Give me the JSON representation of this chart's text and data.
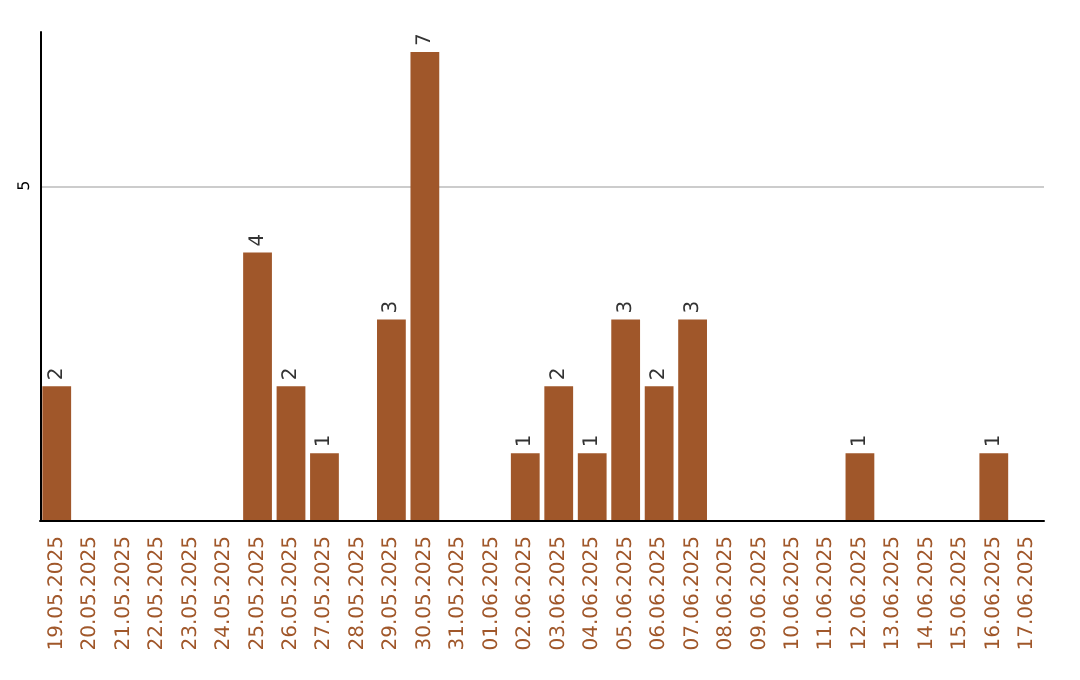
{
  "chart_data": {
    "type": "bar",
    "categories": [
      "19.05.2025",
      "20.05.2025",
      "21.05.2025",
      "22.05.2025",
      "23.05.2025",
      "24.05.2025",
      "25.05.2025",
      "26.05.2025",
      "27.05.2025",
      "28.05.2025",
      "29.05.2025",
      "30.05.2025",
      "31.05.2025",
      "01.06.2025",
      "02.06.2025",
      "03.06.2025",
      "04.06.2025",
      "05.06.2025",
      "06.06.2025",
      "07.06.2025",
      "08.06.2025",
      "09.06.2025",
      "10.06.2025",
      "11.06.2025",
      "12.06.2025",
      "13.06.2025",
      "14.06.2025",
      "15.06.2025",
      "16.06.2025",
      "17.06.2025"
    ],
    "values": [
      2,
      0,
      0,
      0,
      0,
      0,
      4,
      2,
      1,
      0,
      3,
      7,
      0,
      0,
      1,
      2,
      1,
      3,
      2,
      3,
      0,
      0,
      0,
      0,
      1,
      0,
      0,
      0,
      1,
      0
    ],
    "value_labels": [
      "2",
      null,
      null,
      null,
      null,
      null,
      "4",
      "2",
      "1",
      null,
      "3",
      "7",
      null,
      null,
      "1",
      "2",
      "1",
      "3",
      "2",
      "3",
      null,
      null,
      null,
      null,
      "1",
      null,
      null,
      null,
      "1",
      null
    ],
    "color": "#a0572a",
    "ylim": [
      0,
      7.3
    ],
    "yticks": [
      5
    ],
    "grid": "y"
  }
}
